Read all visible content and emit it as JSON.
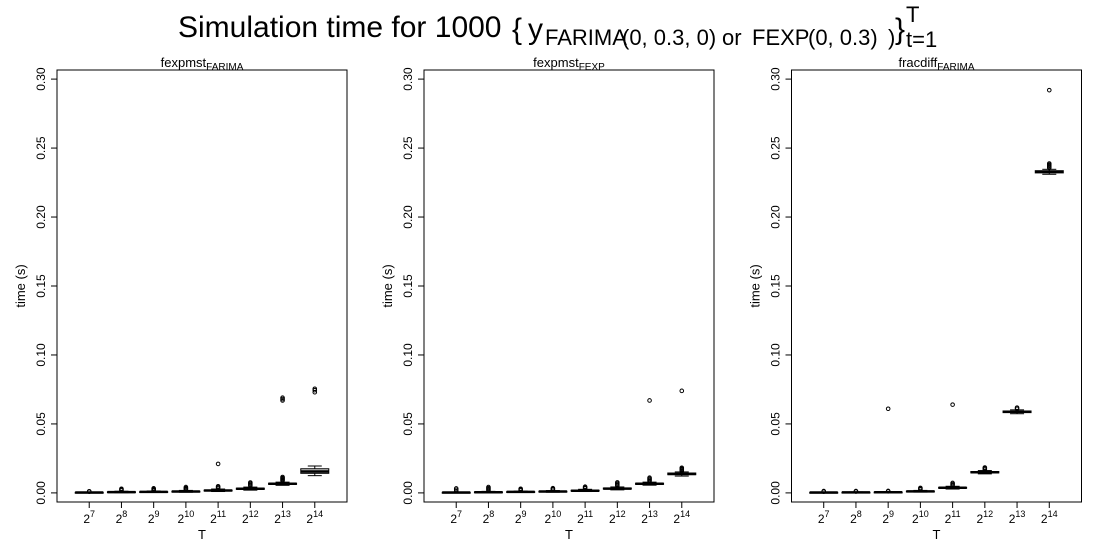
{
  "title": {
    "main": "Simulation time for 1000",
    "brace_open": "{",
    "y": "y",
    "sub_a": "FARIMA",
    "args_a": "(0, 0.3, 0)",
    "or": "or",
    "sub_b": "FEXP",
    "args_b": "(0, 0.3)",
    "paren_close": ")",
    "brace_close": "}",
    "sup": "T",
    "sub_t": "t=1"
  },
  "chart_data": [
    {
      "type": "box",
      "title": "fexpmst",
      "title_sub": "FARIMA",
      "xlabel": "T",
      "ylabel": "time (s)",
      "ylim": [
        0,
        0.3
      ],
      "yticks": [
        "0.00",
        "0.05",
        "0.10",
        "0.15",
        "0.20",
        "0.25",
        "0.30"
      ],
      "ytick_values": [
        0,
        0.05,
        0.1,
        0.15,
        0.2,
        0.25,
        0.3
      ],
      "categories": [
        {
          "base": "2",
          "exp": "7"
        },
        {
          "base": "2",
          "exp": "8"
        },
        {
          "base": "2",
          "exp": "9"
        },
        {
          "base": "2",
          "exp": "10"
        },
        {
          "base": "2",
          "exp": "11"
        },
        {
          "base": "2",
          "exp": "12"
        },
        {
          "base": "2",
          "exp": "13"
        },
        {
          "base": "2",
          "exp": "14"
        }
      ],
      "boxes": [
        {
          "q1": 0.0002,
          "median": 0.0003,
          "q3": 0.0004,
          "wlo": 0.0001,
          "whi": 0.0006,
          "outliers": [
            0.0009,
            0.0012
          ]
        },
        {
          "q1": 0.0004,
          "median": 0.0006,
          "q3": 0.0008,
          "wlo": 0.0002,
          "whi": 0.0012,
          "outliers": [
            0.0018,
            0.0024,
            0.003
          ]
        },
        {
          "q1": 0.0005,
          "median": 0.0007,
          "q3": 0.0009,
          "wlo": 0.0003,
          "whi": 0.0014,
          "outliers": [
            0.0018,
            0.0022,
            0.0028,
            0.0033
          ]
        },
        {
          "q1": 0.0008,
          "median": 0.001,
          "q3": 0.0012,
          "wlo": 0.0005,
          "whi": 0.0018,
          "outliers": [
            0.0024,
            0.003,
            0.0035,
            0.0042
          ]
        },
        {
          "q1": 0.0014,
          "median": 0.0017,
          "q3": 0.002,
          "wlo": 0.001,
          "whi": 0.0028,
          "outliers": [
            0.0035,
            0.0042,
            0.0048,
            0.021
          ]
        },
        {
          "q1": 0.0026,
          "median": 0.003,
          "q3": 0.0034,
          "wlo": 0.002,
          "whi": 0.0042,
          "outliers": [
            0.0052,
            0.006,
            0.0068,
            0.0075
          ]
        },
        {
          "q1": 0.0062,
          "median": 0.0066,
          "q3": 0.007,
          "wlo": 0.0055,
          "whi": 0.0078,
          "outliers": [
            0.0088,
            0.0095,
            0.0102,
            0.0108,
            0.0115,
            0.067,
            0.068,
            0.069
          ]
        },
        {
          "q1": 0.0142,
          "median": 0.0155,
          "q3": 0.0175,
          "wlo": 0.0125,
          "whi": 0.0195,
          "outliers": [
            0.073,
            0.0745,
            0.0755
          ]
        }
      ]
    },
    {
      "type": "box",
      "title": "fexpmst",
      "title_sub": "FEXP",
      "xlabel": "T",
      "ylabel": "time (s)",
      "ylim": [
        0,
        0.3
      ],
      "yticks": [
        "0.00",
        "0.05",
        "0.10",
        "0.15",
        "0.20",
        "0.25",
        "0.30"
      ],
      "ytick_values": [
        0,
        0.05,
        0.1,
        0.15,
        0.2,
        0.25,
        0.3
      ],
      "categories": [
        {
          "base": "2",
          "exp": "7"
        },
        {
          "base": "2",
          "exp": "8"
        },
        {
          "base": "2",
          "exp": "9"
        },
        {
          "base": "2",
          "exp": "10"
        },
        {
          "base": "2",
          "exp": "11"
        },
        {
          "base": "2",
          "exp": "12"
        },
        {
          "base": "2",
          "exp": "13"
        },
        {
          "base": "2",
          "exp": "14"
        }
      ],
      "boxes": [
        {
          "q1": 0.0002,
          "median": 0.0003,
          "q3": 0.0004,
          "wlo": 0.0001,
          "whi": 0.0006,
          "outliers": [
            0.0012,
            0.0022,
            0.0032
          ]
        },
        {
          "q1": 0.0004,
          "median": 0.0005,
          "q3": 0.0007,
          "wlo": 0.0002,
          "whi": 0.0011,
          "outliers": [
            0.0018,
            0.0026,
            0.0034,
            0.0042
          ]
        },
        {
          "q1": 0.0005,
          "median": 0.0007,
          "q3": 0.0009,
          "wlo": 0.0003,
          "whi": 0.0013,
          "outliers": [
            0.0018,
            0.0024,
            0.003
          ]
        },
        {
          "q1": 0.0008,
          "median": 0.001,
          "q3": 0.0012,
          "wlo": 0.0005,
          "whi": 0.0017,
          "outliers": [
            0.0022,
            0.0028,
            0.0034
          ]
        },
        {
          "q1": 0.0014,
          "median": 0.0016,
          "q3": 0.0019,
          "wlo": 0.001,
          "whi": 0.0026,
          "outliers": [
            0.0032,
            0.0038,
            0.0045
          ]
        },
        {
          "q1": 0.0028,
          "median": 0.0031,
          "q3": 0.0035,
          "wlo": 0.0022,
          "whi": 0.0043,
          "outliers": [
            0.0052,
            0.006,
            0.0068,
            0.0076
          ]
        },
        {
          "q1": 0.0062,
          "median": 0.0066,
          "q3": 0.007,
          "wlo": 0.0056,
          "whi": 0.0078,
          "outliers": [
            0.0086,
            0.0094,
            0.0102,
            0.011,
            0.067
          ]
        },
        {
          "q1": 0.0132,
          "median": 0.0138,
          "q3": 0.0144,
          "wlo": 0.0122,
          "whi": 0.0152,
          "outliers": [
            0.016,
            0.0168,
            0.0175,
            0.0182,
            0.074
          ]
        }
      ]
    },
    {
      "type": "box",
      "title": "fracdiff",
      "title_sub": "FARIMA",
      "xlabel": "T",
      "ylabel": "time (s)",
      "ylim": [
        0,
        0.3
      ],
      "yticks": [
        "0.00",
        "0.05",
        "0.10",
        "0.15",
        "0.20",
        "0.25",
        "0.30"
      ],
      "ytick_values": [
        0,
        0.05,
        0.1,
        0.15,
        0.2,
        0.25,
        0.3
      ],
      "categories": [
        {
          "base": "2",
          "exp": "7"
        },
        {
          "base": "2",
          "exp": "8"
        },
        {
          "base": "2",
          "exp": "9"
        },
        {
          "base": "2",
          "exp": "10"
        },
        {
          "base": "2",
          "exp": "11"
        },
        {
          "base": "2",
          "exp": "12"
        },
        {
          "base": "2",
          "exp": "13"
        },
        {
          "base": "2",
          "exp": "14"
        }
      ],
      "boxes": [
        {
          "q1": 0.0002,
          "median": 0.0003,
          "q3": 0.0004,
          "wlo": 0.0001,
          "whi": 0.0006,
          "outliers": [
            0.0009,
            0.0013
          ]
        },
        {
          "q1": 0.0003,
          "median": 0.0004,
          "q3": 0.0005,
          "wlo": 0.0002,
          "whi": 0.0007,
          "outliers": [
            0.001,
            0.0013
          ]
        },
        {
          "q1": 0.0004,
          "median": 0.0005,
          "q3": 0.0006,
          "wlo": 0.0003,
          "whi": 0.0008,
          "outliers": [
            0.0011,
            0.0014,
            0.061
          ]
        },
        {
          "q1": 0.0009,
          "median": 0.0011,
          "q3": 0.0013,
          "wlo": 0.0006,
          "whi": 0.0018,
          "outliers": [
            0.0024,
            0.003,
            0.0036
          ]
        },
        {
          "q1": 0.0034,
          "median": 0.0037,
          "q3": 0.004,
          "wlo": 0.0028,
          "whi": 0.0048,
          "outliers": [
            0.0056,
            0.0064,
            0.0072,
            0.064
          ]
        },
        {
          "q1": 0.0145,
          "median": 0.015,
          "q3": 0.0155,
          "wlo": 0.0138,
          "whi": 0.0162,
          "outliers": [
            0.017,
            0.0178,
            0.0184
          ]
        },
        {
          "q1": 0.0582,
          "median": 0.0588,
          "q3": 0.0594,
          "wlo": 0.0574,
          "whi": 0.0602,
          "outliers": [
            0.061,
            0.0618
          ]
        },
        {
          "q1": 0.232,
          "median": 0.2328,
          "q3": 0.2336,
          "wlo": 0.231,
          "whi": 0.2346,
          "outliers": [
            0.2356,
            0.2364,
            0.2372,
            0.238,
            0.2388,
            0.292
          ]
        }
      ]
    }
  ]
}
